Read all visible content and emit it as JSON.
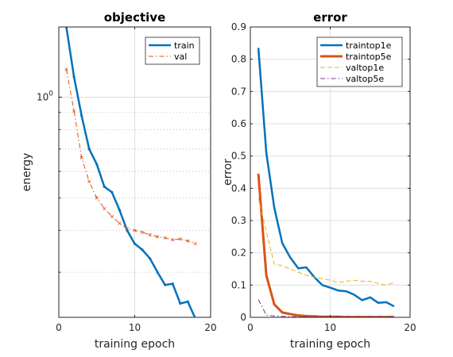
{
  "chart_data": [
    {
      "type": "line",
      "title": "objective",
      "xlabel": "training epoch",
      "ylabel": "energy",
      "xlim": [
        0,
        20
      ],
      "yscale": "log",
      "ylim": [
        0.22,
        1.62
      ],
      "xticks": [
        0,
        10,
        20
      ],
      "xtick_labels": [
        "0",
        "10",
        "20"
      ],
      "ytick_label_base": "10",
      "ytick_label_exp": "0",
      "grid": true,
      "legend_position": "top-right",
      "x": [
        1,
        2,
        3,
        4,
        5,
        6,
        7,
        8,
        9,
        10,
        11,
        12,
        13,
        14,
        15,
        16,
        17,
        18
      ],
      "series": [
        {
          "name": "train",
          "color": "#0072bd",
          "style": "solid",
          "values": [
            1.62,
            1.15,
            0.88,
            0.7,
            0.63,
            0.54,
            0.52,
            0.46,
            0.4,
            0.365,
            0.35,
            0.33,
            0.3,
            0.275,
            0.277,
            0.242,
            0.245,
            0.218
          ]
        },
        {
          "name": "val",
          "color": "#d95319",
          "style": "dashdot",
          "values": [
            1.21,
            0.91,
            0.66,
            0.56,
            0.5,
            0.465,
            0.44,
            0.42,
            0.405,
            0.4,
            0.395,
            0.388,
            0.383,
            0.38,
            0.375,
            0.377,
            0.372,
            0.365
          ]
        }
      ]
    },
    {
      "type": "line",
      "title": "error",
      "xlabel": "training epoch",
      "ylabel": "error",
      "xlim": [
        0,
        20
      ],
      "ylim": [
        0,
        0.9
      ],
      "xticks": [
        0,
        10,
        20
      ],
      "xtick_labels": [
        "0",
        "10",
        "20"
      ],
      "yticks": [
        0,
        0.1,
        0.2,
        0.3,
        0.4,
        0.5,
        0.6,
        0.7,
        0.8,
        0.9
      ],
      "ytick_labels": [
        "0",
        "0.1",
        "0.2",
        "0.3",
        "0.4",
        "0.5",
        "0.6",
        "0.7",
        "0.8",
        "0.9"
      ],
      "grid": true,
      "legend_position": "top-right",
      "x": [
        1,
        2,
        3,
        4,
        5,
        6,
        7,
        8,
        9,
        10,
        11,
        12,
        13,
        14,
        15,
        16,
        17,
        18
      ],
      "series": [
        {
          "name": "traintop1e",
          "color": "#0072bd",
          "style": "solid",
          "width": 2.5,
          "values": [
            0.835,
            0.51,
            0.34,
            0.23,
            0.185,
            0.152,
            0.155,
            0.125,
            0.1,
            0.092,
            0.083,
            0.081,
            0.07,
            0.053,
            0.062,
            0.045,
            0.047,
            0.034
          ]
        },
        {
          "name": "traintop5e",
          "color": "#d95319",
          "style": "solid",
          "width": 3,
          "values": [
            0.445,
            0.13,
            0.04,
            0.015,
            0.01,
            0.006,
            0.004,
            0.003,
            0.002,
            0.002,
            0.002,
            0.001,
            0.001,
            0.001,
            0.001,
            0.001,
            0.001,
            0.001
          ]
        },
        {
          "name": "valtop1e",
          "color": "#edb120",
          "style": "dashed",
          "width": 1,
          "values": [
            0.37,
            0.265,
            0.165,
            0.16,
            0.15,
            0.14,
            0.13,
            0.125,
            0.12,
            0.115,
            0.108,
            0.112,
            0.115,
            0.112,
            0.112,
            0.105,
            0.1,
            0.107
          ]
        },
        {
          "name": "valtop5e",
          "color": "#7e2f8e",
          "style": "dashdot",
          "width": 1,
          "values": [
            0.055,
            0.007,
            0.004,
            0.003,
            0.002,
            0.002,
            0.002,
            0.002,
            0.002,
            0.002,
            0.002,
            0.002,
            0.002,
            0.002,
            0.002,
            0.002,
            0.002,
            0.002
          ]
        }
      ]
    }
  ]
}
